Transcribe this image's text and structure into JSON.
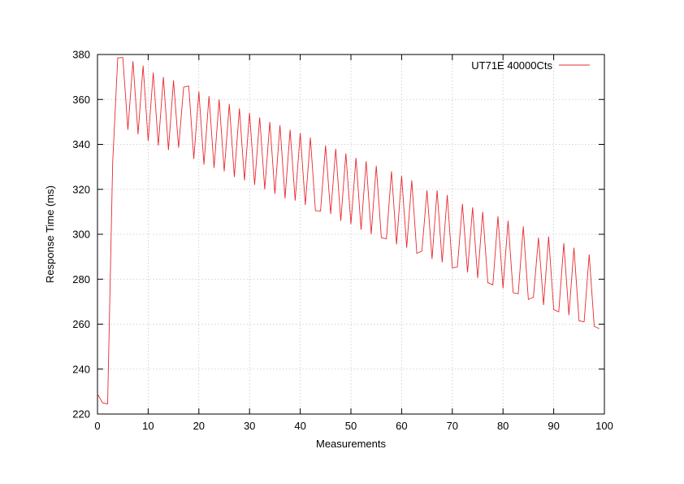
{
  "chart_data": {
    "type": "line",
    "xlabel": "Measurements",
    "ylabel": "Response Time (ms)",
    "xlim": [
      0,
      100
    ],
    "ylim": [
      220,
      380
    ],
    "xticks": [
      0,
      10,
      20,
      30,
      40,
      50,
      60,
      70,
      80,
      90,
      100
    ],
    "yticks": [
      220,
      240,
      260,
      280,
      300,
      320,
      340,
      360,
      380
    ],
    "grid": true,
    "legend": "top-right",
    "series": [
      {
        "name": "UT71E 40000Cts",
        "color": "#e8292f",
        "x": [
          0,
          1,
          2,
          3,
          4,
          5,
          6,
          7,
          8,
          9,
          10,
          11,
          12,
          13,
          14,
          15,
          16,
          17,
          18,
          19,
          20,
          21,
          22,
          23,
          24,
          25,
          26,
          27,
          28,
          29,
          30,
          31,
          32,
          33,
          34,
          35,
          36,
          37,
          38,
          39,
          40,
          41,
          42,
          43,
          44,
          45,
          46,
          47,
          48,
          49,
          50,
          51,
          52,
          53,
          54,
          55,
          56,
          57,
          58,
          59,
          60,
          61,
          62,
          63,
          64,
          65,
          66,
          67,
          68,
          69,
          70,
          71,
          72,
          73,
          74,
          75,
          76,
          77,
          78,
          79,
          80,
          81,
          82,
          83,
          84,
          85,
          86,
          87,
          88,
          89,
          90,
          91,
          92,
          93,
          94,
          95,
          96,
          97,
          98,
          99
        ],
        "y": [
          229,
          225,
          224.5,
          332,
          378.5,
          378.7,
          346.5,
          377,
          344.5,
          375,
          341.5,
          372,
          339.5,
          370,
          337.5,
          368.5,
          338.5,
          365.5,
          366,
          333.5,
          363.5,
          331,
          361.5,
          329.5,
          360,
          328,
          358,
          325.5,
          356,
          324,
          354,
          322,
          352,
          320,
          350,
          318,
          348.5,
          316,
          346.5,
          315,
          345,
          313,
          343,
          310.5,
          310.3,
          339.5,
          309,
          338,
          306,
          336,
          304.5,
          334,
          302,
          332.5,
          300,
          330.5,
          298.5,
          298,
          328,
          295.5,
          326,
          294,
          324,
          291.5,
          292.5,
          319.5,
          289,
          319.5,
          287.5,
          317.5,
          285,
          285.5,
          313.5,
          283,
          312,
          280.5,
          310,
          278.5,
          277.5,
          308,
          276,
          306,
          274,
          273.5,
          303.5,
          271,
          272,
          298.5,
          268.5,
          299,
          266.5,
          265.5,
          296,
          264,
          294,
          261.5,
          261,
          291,
          259,
          258
        ]
      }
    ]
  }
}
